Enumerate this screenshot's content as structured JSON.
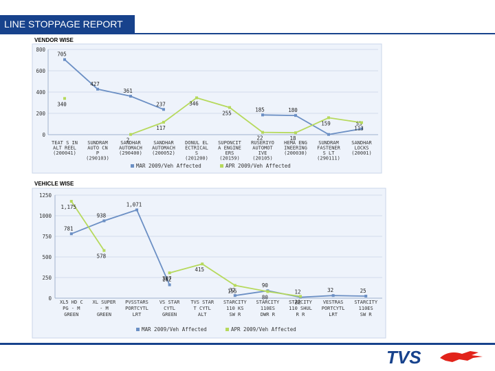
{
  "header": {
    "title": "LINE STOPPAGE REPORT"
  },
  "colors": {
    "brand": "#17428c",
    "series_mar": "#6b8fc4",
    "series_apr": "#b6d95c",
    "plot_bg": "#eef3fb",
    "logo_red": "#e2231a"
  },
  "logo": {
    "name": "tvs-logo",
    "text": "TVS"
  },
  "chart_data": [
    {
      "type": "line",
      "heading": "VENDOR WISE",
      "categories": [
        "TEAT S IN\nALT REEL\n(200041)",
        "SUNDRAM\nAUTO CN\nP\n(290103)",
        "SANDHAR\nAUTOMACH\n(290400)",
        "SANDHAR\nAUTOMACH\n(200052)",
        "DONUL EL\nECTRICAL\nS\n(201200)",
        "SUPONCIT\nA ENGINE\nERS\n(20159)",
        "RUSERIYO\nAUTOMOT\nIVE\n(20105)",
        "HEMA ENG\nINEERING\n(200030)",
        "SUNDRAM\nFASTENER\nS LT\n(290111)",
        "SANDHAR\nLOCKS\n(20001)"
      ],
      "y_ticks": [
        "800",
        "600",
        "400",
        "200",
        "0"
      ],
      "ylim": [
        0,
        800
      ],
      "series": [
        {
          "name": "MAR 2009/Veh Affected",
          "values": [
            705,
            427,
            361,
            237,
            null,
            null,
            185,
            180,
            2,
            55
          ],
          "labels": [
            "705",
            "427",
            "361",
            "237",
            "",
            "",
            "185",
            "180",
            "",
            "55"
          ]
        },
        {
          "name": "APR 2009/Veh Affected",
          "values": [
            340,
            null,
            2,
            117,
            346,
            255,
            22,
            18,
            159,
            113
          ],
          "labels": [
            "340",
            "",
            "2",
            "117",
            "346",
            "255",
            "22",
            "18",
            "159",
            "113"
          ]
        }
      ],
      "legend_position": "bottom"
    },
    {
      "type": "line",
      "heading": "VEHICLE WISE",
      "categories": [
        "XL5 HD C\nPG - M\nGREEN",
        "XL SUPER\n- M\nGREEN",
        "PVSSTARS\nPORTCYTL\nLRT",
        "VS STAR\nCYTL\nGREEN",
        "TVS STAR\nT CYTL\nALT",
        "STARCITY\n110 KS\nSW R",
        "STARCITY\n110ES\nDWR R",
        "STARCITY\n110 SHUL\nR R",
        "VESTRAS\nPORTCYTL\nLRT",
        "STARCITY\n110ES\nSW R"
      ],
      "y_ticks": [
        "1250",
        "1000",
        "750",
        "500",
        "250",
        "0"
      ],
      "ylim": [
        0,
        1250
      ],
      "series": [
        {
          "name": "MAR 2009/Veh Affected",
          "values": [
            781,
            938,
            1071,
            162,
            null,
            32,
            90,
            12,
            32,
            25
          ],
          "labels": [
            "781",
            "938",
            "1,071",
            "162",
            "",
            "32",
            "90",
            "12",
            "32",
            "25"
          ]
        },
        {
          "name": "APR 2009/Veh Affected",
          "values": [
            1175,
            578,
            null,
            307,
            415,
            155,
            80,
            22,
            null,
            null
          ],
          "labels": [
            "1,175",
            "578",
            "",
            "307",
            "415",
            "155",
            "80",
            "22",
            "",
            ""
          ]
        }
      ],
      "legend_position": "bottom"
    }
  ]
}
